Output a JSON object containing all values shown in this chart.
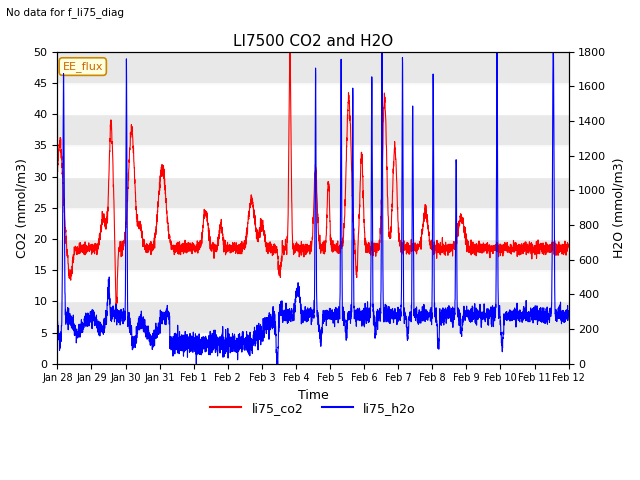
{
  "title": "LI7500 CO2 and H2O",
  "suptitle": "No data for f_li75_diag",
  "xlabel": "Time",
  "ylabel_left": "CO2 (mmol/m3)",
  "ylabel_right": "H2O (mmol/m3)",
  "legend_label1": "li75_co2",
  "legend_label2": "li75_h2o",
  "legend_box_label": "EE_flux",
  "ylim_left": [
    0,
    50
  ],
  "ylim_right": [
    0,
    1800
  ],
  "background_color": "#ffffff",
  "plot_bg_light": "#ffffff",
  "plot_bg_dark": "#e8e8e8",
  "color_co2": "#ff0000",
  "color_h2o": "#0000ff",
  "n_days": 15,
  "n_points": 3600,
  "title_fontsize": 11,
  "label_fontsize": 9,
  "tick_fontsize": 8,
  "xtick_labels": [
    "Jan 28",
    "Jan 29",
    "Jan 30",
    "Jan 31",
    "Feb 1",
    "Feb 2",
    "Feb 3",
    "Feb 4",
    "Feb 5",
    "Feb 6",
    "Feb 7",
    "Feb 8",
    "Feb 9",
    "Feb 10",
    "Feb 11",
    "Feb 12"
  ]
}
